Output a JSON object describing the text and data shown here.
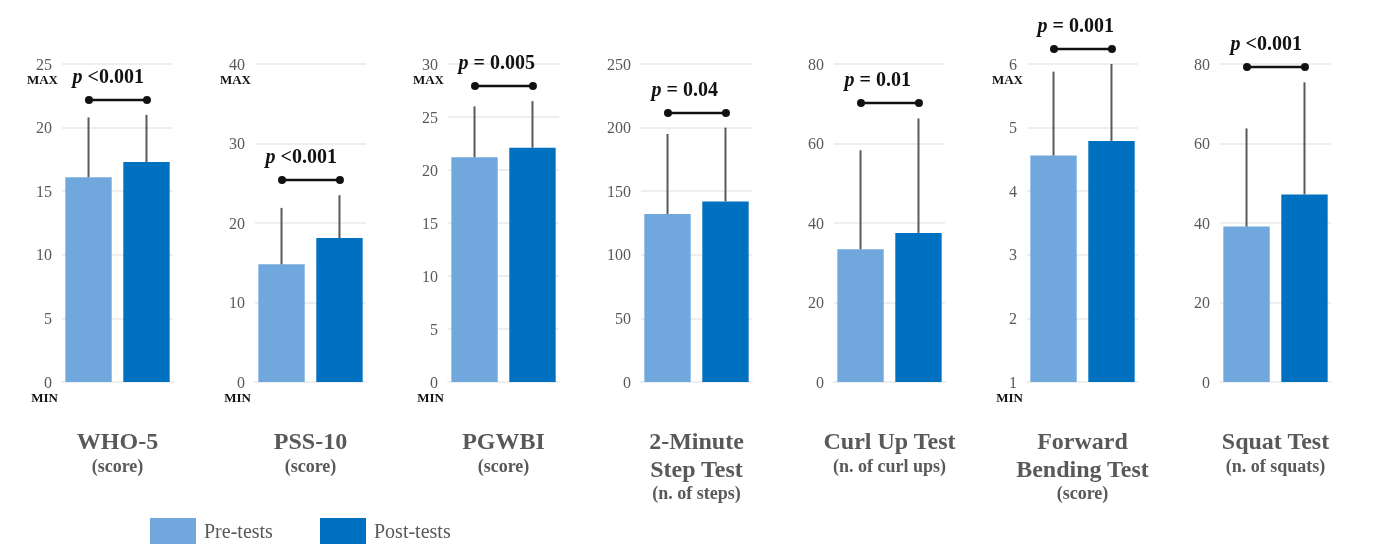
{
  "chart_data": [
    {
      "type": "bar",
      "xlabel": "WHO-5\n(score)",
      "categories": [
        null
      ],
      "legend": "bottom",
      "grid": "y",
      "tick_labels": "y",
      "ylim": [
        0,
        25
      ],
      "yticks": [
        0,
        5,
        10,
        15,
        20,
        25
      ],
      "annotations": [
        "p <0.001",
        "MAX",
        "MIN"
      ],
      "series": [
        {
          "name": "Pre-tests",
          "color": "#70a8de",
          "values": [
            16.1
          ],
          "errors": [
            [
              16.1,
              20.8
            ]
          ]
        },
        {
          "name": "Post-tests",
          "color": "#0070c0",
          "values": [
            17.3
          ],
          "errors": [
            [
              17.3,
              21.0
            ]
          ]
        }
      ]
    },
    {
      "type": "bar",
      "xlabel": "PSS-10\n(score)",
      "categories": [
        null
      ],
      "grid": "y",
      "tick_labels": "y",
      "ylim": [
        0,
        40
      ],
      "yticks": [
        0,
        10,
        20,
        30,
        40
      ],
      "annotations": [
        "p <0.001",
        "MAX",
        "MIN"
      ],
      "series": [
        {
          "color": "#70a8de",
          "values": [
            14.8
          ],
          "errors": [
            [
              14.8,
              21.9
            ]
          ]
        },
        {
          "color": "#0070c0",
          "values": [
            18.1
          ],
          "errors": [
            [
              18.1,
              23.5
            ]
          ]
        }
      ]
    },
    {
      "type": "bar",
      "xlabel": "PGWBI\n(score)",
      "categories": [
        null
      ],
      "grid": "y",
      "tick_labels": "y",
      "ylim": [
        0,
        30
      ],
      "yticks": [
        0,
        5,
        10,
        15,
        20,
        25,
        30
      ],
      "annotations": [
        "p = 0.005",
        "MAX",
        "MIN"
      ],
      "series": [
        {
          "color": "#70a8de",
          "values": [
            21.2
          ],
          "errors": [
            [
              21.2,
              26.0
            ]
          ]
        },
        {
          "color": "#0070c0",
          "values": [
            22.1
          ],
          "errors": [
            [
              22.1,
              26.5
            ]
          ]
        }
      ]
    },
    {
      "type": "bar",
      "xlabel": "2-Minute Step Test\n(n. of steps)",
      "categories": [
        null
      ],
      "grid": "y",
      "tick_labels": "y",
      "ylim": [
        0,
        250
      ],
      "yticks": [
        0,
        50,
        100,
        150,
        200,
        250
      ],
      "annotations": [
        "p = 0.04"
      ],
      "series": [
        {
          "color": "#70a8de",
          "values": [
            132
          ],
          "errors": [
            [
              132,
              195
            ]
          ]
        },
        {
          "color": "#0070c0",
          "values": [
            142
          ],
          "errors": [
            [
              142,
              200
            ]
          ]
        }
      ]
    },
    {
      "type": "bar",
      "xlabel": "Curl Up Test\n(n. of curl ups)",
      "categories": [
        null
      ],
      "grid": "y",
      "tick_labels": "y",
      "ylim": [
        0,
        80
      ],
      "yticks": [
        0,
        20,
        40,
        60,
        80
      ],
      "annotations": [
        "p = 0.01"
      ],
      "series": [
        {
          "color": "#70a8de",
          "values": [
            33.4
          ],
          "errors": [
            [
              33.4,
              58.3
            ]
          ]
        },
        {
          "color": "#0070c0",
          "values": [
            37.5
          ],
          "errors": [
            [
              37.5,
              66.3
            ]
          ]
        }
      ]
    },
    {
      "type": "bar",
      "xlabel": "Forward Bending Test\n(score)",
      "categories": [
        null
      ],
      "grid": "y",
      "tick_labels": "y",
      "ylim": [
        1,
        6
      ],
      "yticks": [
        1,
        2,
        3,
        4,
        5,
        6
      ],
      "annotations": [
        "p = 0.001",
        "MAX",
        "MIN"
      ],
      "series": [
        {
          "color": "#70a8de",
          "values": [
            4.56
          ],
          "errors": [
            [
              4.56,
              5.88
            ]
          ]
        },
        {
          "color": "#0070c0",
          "values": [
            4.79
          ],
          "errors": [
            [
              4.79,
              6.0
            ]
          ]
        }
      ]
    },
    {
      "type": "bar",
      "xlabel": "Squat Test\n(n. of squats)",
      "categories": [
        null
      ],
      "grid": "y",
      "tick_labels": "y",
      "ylim": [
        0,
        80
      ],
      "yticks": [
        0,
        20,
        40,
        60,
        80
      ],
      "annotations": [
        "p <0.001"
      ],
      "series": [
        {
          "color": "#70a8de",
          "values": [
            39.1
          ],
          "errors": [
            [
              39.1,
              63.8
            ]
          ]
        },
        {
          "color": "#0070c0",
          "values": [
            47.2
          ],
          "errors": [
            [
              47.2,
              75.4
            ]
          ]
        }
      ]
    }
  ]
}
